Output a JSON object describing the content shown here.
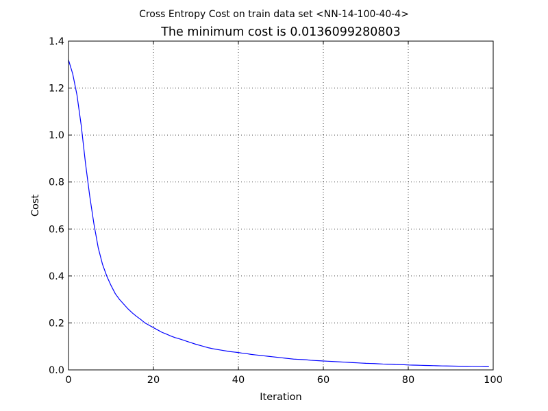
{
  "chart_data": {
    "type": "line",
    "suptitle": "Cross Entropy Cost on train data set <NN-14-100-40-4>",
    "title": "The minimum cost is 0.0136099280803",
    "xlabel": "Iteration",
    "ylabel": "Cost",
    "xlim": [
      0,
      100
    ],
    "ylim": [
      0,
      1.4
    ],
    "xticks": [
      "0",
      "20",
      "40",
      "60",
      "80",
      "100"
    ],
    "yticks": [
      "0.0",
      "0.2",
      "0.4",
      "0.6",
      "0.8",
      "1.0",
      "1.2",
      "1.4"
    ],
    "grid": true,
    "line_color": "#0000ff",
    "series": [
      {
        "x": [
          0,
          1,
          2,
          3,
          4,
          5,
          6,
          7,
          8,
          9,
          10,
          11,
          12,
          13,
          14,
          15,
          16,
          17,
          18,
          19,
          20,
          21,
          22,
          23,
          24,
          25,
          26,
          27,
          28,
          29,
          30,
          31,
          32,
          33,
          34,
          35,
          36,
          37,
          38,
          39,
          40,
          41,
          42,
          43,
          44,
          45,
          46,
          47,
          48,
          49,
          50,
          51,
          52,
          53,
          54,
          55,
          56,
          57,
          58,
          59,
          60,
          61,
          62,
          63,
          64,
          65,
          66,
          67,
          68,
          69,
          70,
          71,
          72,
          73,
          74,
          75,
          76,
          77,
          78,
          79,
          80,
          81,
          82,
          83,
          84,
          85,
          86,
          87,
          88,
          89,
          90,
          91,
          92,
          93,
          94,
          95,
          96,
          97,
          98,
          99
        ],
        "values": [
          1.32,
          1.26,
          1.17,
          1.04,
          0.88,
          0.74,
          0.62,
          0.52,
          0.45,
          0.4,
          0.36,
          0.325,
          0.3,
          0.28,
          0.26,
          0.243,
          0.228,
          0.215,
          0.2,
          0.19,
          0.18,
          0.17,
          0.16,
          0.153,
          0.145,
          0.138,
          0.133,
          0.127,
          0.121,
          0.115,
          0.109,
          0.104,
          0.099,
          0.094,
          0.09,
          0.087,
          0.084,
          0.081,
          0.078,
          0.076,
          0.074,
          0.071,
          0.069,
          0.066,
          0.064,
          0.062,
          0.06,
          0.058,
          0.056,
          0.054,
          0.052,
          0.05,
          0.048,
          0.046,
          0.045,
          0.044,
          0.043,
          0.041,
          0.04,
          0.039,
          0.038,
          0.037,
          0.036,
          0.035,
          0.034,
          0.033,
          0.032,
          0.031,
          0.03,
          0.029,
          0.028,
          0.0275,
          0.027,
          0.026,
          0.025,
          0.0245,
          0.024,
          0.023,
          0.0225,
          0.022,
          0.021,
          0.0205,
          0.02,
          0.0195,
          0.019,
          0.0185,
          0.018,
          0.0175,
          0.017,
          0.0168,
          0.0165,
          0.016,
          0.0157,
          0.0153,
          0.015,
          0.0147,
          0.0144,
          0.0141,
          0.0138,
          0.0136
        ]
      }
    ]
  }
}
